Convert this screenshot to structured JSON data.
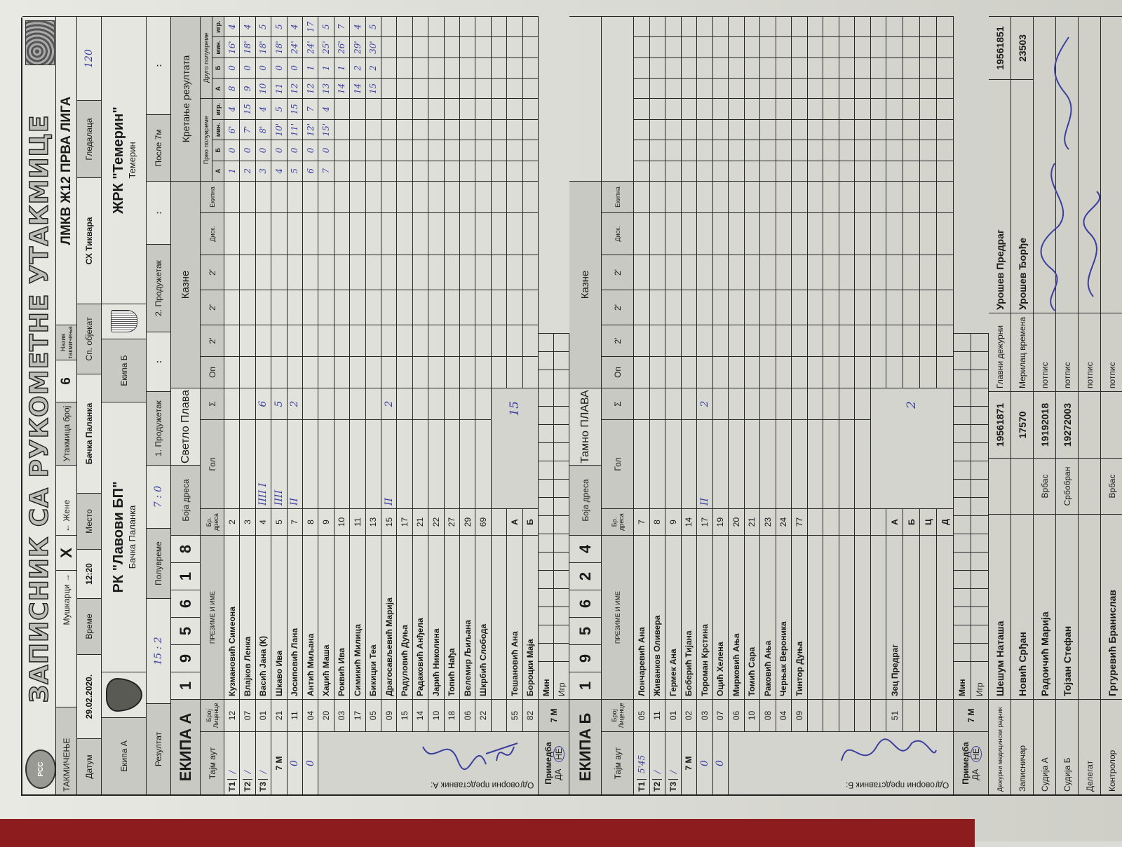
{
  "title": "ЗАПИСНИК СА РУКОМЕТНЕ УТАКМИЦЕ",
  "logo_text": "РСС",
  "header": {
    "competition_label": "ТАКМИЧЕЊЕ",
    "men_label": "Мушкарци →",
    "mark": "X",
    "women_label": "← Жене",
    "match_no_label": "Утакмица број",
    "match_no": "6",
    "competition_name_label": "Назив такмичења",
    "competition_name": "ЛМКВ Ж12 ПРВА ЛИГА",
    "date_label": "Датум",
    "date": "29.02.2020.",
    "time_label": "Време",
    "time": "12:20",
    "place_label": "Место",
    "place": "Бачка Паланка",
    "venue_label": "Сп. објекат",
    "venue": "СХ Тиквара",
    "spectators_label": "Гледалаца",
    "spectators": "120",
    "team_a_label": "Екипа А",
    "team_a_name": "РК \"Лавови БП\"",
    "team_a_city": "Бачка Паланка",
    "team_b_label": "Екипа Б",
    "team_b_name": "ЖРК \"Темерин\"",
    "team_b_city": "Темерин",
    "result_label": "Резултат",
    "result": "15 : 2",
    "halftime_label": "Полувреме",
    "halftime": "7 : 0",
    "ot1_label": "1. Продужетак",
    "ot1": ":",
    "ot2_label": "2. Продужетак",
    "ot2": ":",
    "after7m_label": "После 7м",
    "after7m": ":"
  },
  "columns": {
    "timeout": "Тајм аут",
    "license": "Број Лиценце",
    "name": "ПРЕЗИМЕ И ИМЕ",
    "jersey": "Бр. дреса",
    "goal": "Гол",
    "sum": "Σ",
    "warning": "Оп",
    "p1": "2'",
    "p2": "2'",
    "p3": "2'",
    "disq": "Диск.",
    "team": "Екипна",
    "first_half": "Прво полувреме",
    "second_half": "Друго полувреме",
    "prog_sub": [
      "А",
      "Б",
      "мин.",
      "игр.",
      "А",
      "Б",
      "мин.",
      "игр."
    ]
  },
  "team_a": {
    "label": "ЕКИПА А",
    "license_digits": [
      "1",
      "9",
      "5",
      "6",
      "1",
      "8"
    ],
    "jersey_color_label": "Боја дреса",
    "jersey_color": "Светло Плава",
    "penalties_label": "Казне",
    "progression_label": "Кретање резултата",
    "timeouts": [
      {
        "label": "T1",
        "value": "/"
      },
      {
        "label": "T2",
        "value": "/"
      },
      {
        "label": "T3",
        "value": "/"
      }
    ],
    "seven_m_label": "7 M",
    "seven_m": [
      "0",
      "0"
    ],
    "players": [
      {
        "license": "12",
        "name": "Кузмановић Симеона",
        "jersey": "2"
      },
      {
        "license": "07",
        "name": "Влајков Ленка",
        "jersey": "3"
      },
      {
        "license": "01",
        "name": "Васић Јана    (К)",
        "jersey": "4",
        "goals": "IIII I",
        "total": "6"
      },
      {
        "license": "21",
        "name": "Шкаво Ива",
        "jersey": "5",
        "goals": "IIII",
        "total": "5"
      },
      {
        "license": "11",
        "name": "Јосиповић Лана",
        "jersey": "7",
        "goals": "II",
        "total": "2"
      },
      {
        "license": "04",
        "name": "Антић Миљана",
        "jersey": "8"
      },
      {
        "license": "20",
        "name": "Хаџић Маша",
        "jersey": "9"
      },
      {
        "license": "03",
        "name": "Роквић Ива",
        "jersey": "10"
      },
      {
        "license": "17",
        "name": "Симикић Милица",
        "jersey": "11"
      },
      {
        "license": "05",
        "name": "Бикицки Теа",
        "jersey": "13"
      },
      {
        "license": "09",
        "name": "Драгосављевић Марија",
        "jersey": "15",
        "goals": "II",
        "total": "2"
      },
      {
        "license": "15",
        "name": "Радуловић Дуња",
        "jersey": "17"
      },
      {
        "license": "14",
        "name": "Радаковић Анђела",
        "jersey": "21"
      },
      {
        "license": "10",
        "name": "Јарић Николина",
        "jersey": "22"
      },
      {
        "license": "18",
        "name": "Топић Нађа",
        "jersey": "27"
      },
      {
        "license": "06",
        "name": "Велемир Љиљана",
        "jersey": "29"
      },
      {
        "license": "22",
        "name": "Шкрбић Слобода",
        "jersey": "69"
      }
    ],
    "staff": [
      {
        "license": "55",
        "name": "Тешановић Ана",
        "role": "А"
      },
      {
        "license": "82",
        "name": "Бороцки Маја",
        "role": "Б"
      }
    ],
    "total_goals": "15",
    "remarks_label": "Примедба",
    "remarks_yes": "ДА",
    "remarks_no": "НЕ",
    "min_label": "Мин",
    "igr_label": "Игр",
    "rep_label": "Одговорни представник А:",
    "progression": {
      "first_half": [
        [
          "1",
          "0",
          "6'",
          "4"
        ],
        [
          "2",
          "0",
          "7'",
          "15"
        ],
        [
          "3",
          "0",
          "8'",
          "4"
        ],
        [
          "4",
          "0",
          "10'",
          "5"
        ],
        [
          "5",
          "0",
          "11'",
          "15"
        ],
        [
          "6",
          "0",
          "12'",
          "7"
        ],
        [
          "7",
          "0",
          "15'",
          "4"
        ]
      ],
      "second_half": [
        [
          "8",
          "0",
          "16'",
          "4"
        ],
        [
          "9",
          "0",
          "18'",
          "4"
        ],
        [
          "10",
          "0",
          "18'",
          "5"
        ],
        [
          "11",
          "0",
          "18'",
          "5"
        ],
        [
          "12",
          "0",
          "24'",
          "4"
        ],
        [
          "12",
          "1",
          "24'",
          "17"
        ],
        [
          "13",
          "1",
          "25'",
          "5"
        ],
        [
          "14",
          "1",
          "26'",
          "7"
        ],
        [
          "14",
          "2",
          "29'",
          "4"
        ],
        [
          "15",
          "2",
          "30'",
          "5"
        ]
      ]
    }
  },
  "team_b": {
    "label": "ЕКИПА Б",
    "license_digits": [
      "1",
      "9",
      "5",
      "6",
      "2",
      "4"
    ],
    "jersey_color_label": "Боја дреса",
    "jersey_color": "Тамно ПЛАВА",
    "penalties_label": "Казне",
    "timeouts": [
      {
        "label": "T1",
        "value": "5'45"
      },
      {
        "label": "T2",
        "value": "/"
      },
      {
        "label": "T3",
        "value": "/"
      }
    ],
    "seven_m_label": "7 M",
    "seven_m": [
      "0",
      "0"
    ],
    "players": [
      {
        "license": "05",
        "name": "Лончаревић Ана",
        "jersey": "7"
      },
      {
        "license": "11",
        "name": "Живанков Оливера",
        "jersey": "8"
      },
      {
        "license": "01",
        "name": "Гермек Ана",
        "jersey": "9"
      },
      {
        "license": "02",
        "name": "Боберић Тијана",
        "jersey": "14"
      },
      {
        "license": "03",
        "name": "Тороман Крстина",
        "jersey": "17",
        "goals": "II",
        "total": "2"
      },
      {
        "license": "07",
        "name": "Оцић Хелена",
        "jersey": "19"
      },
      {
        "license": "06",
        "name": "Мирковић Ања",
        "jersey": "20"
      },
      {
        "license": "10",
        "name": "Томић Сара",
        "jersey": "21"
      },
      {
        "license": "08",
        "name": "Раковић Ања",
        "jersey": "23"
      },
      {
        "license": "04",
        "name": "Черњак Вероника",
        "jersey": "24"
      },
      {
        "license": "09",
        "name": "Тинтор Дуња",
        "jersey": "77"
      }
    ],
    "staff": [
      {
        "license": "51",
        "name": "Зец Предраг",
        "role": "А"
      },
      {
        "license": "",
        "name": "",
        "role": "Б"
      },
      {
        "license": "",
        "name": "",
        "role": "Ц"
      },
      {
        "license": "",
        "name": "",
        "role": "Д"
      }
    ],
    "total_goals": "2",
    "remarks_label": "Примедба",
    "remarks_yes": "ДА",
    "remarks_no": "НЕ",
    "min_label": "Мин",
    "igr_label": "Игр",
    "rep_label": "Одговорни представник Б:"
  },
  "officials": [
    {
      "label": "Дежурни медицински радник",
      "name": "Шешум Наташа",
      "city": "",
      "number": "19561871",
      "label2": "Главни дежурни",
      "name2": "Урошев Предраг",
      "number2": "19561851"
    },
    {
      "label": "Записничар",
      "name": "Новић Срђан",
      "city": "",
      "number": "17570",
      "label2": "Мерилац времена",
      "name2": "Урошев Ђорђе",
      "number2": "23503"
    },
    {
      "label": "Судија А",
      "name": "Радоичић Марија",
      "city": "Врбас",
      "number": "19192018",
      "label2": "потпис"
    },
    {
      "label": "Судија Б",
      "name": "Тојзан Стефан",
      "city": "Србобран",
      "number": "19272003",
      "label2": "потпис"
    },
    {
      "label": "Делегат",
      "name": "",
      "city": "",
      "number": "",
      "label2": "потпис"
    },
    {
      "label": "Контролор",
      "name": "Гргуревић Бранислав",
      "city": "Врбас",
      "number": "",
      "label2": "потпис"
    }
  ],
  "colors": {
    "ink": "#3b3f9e",
    "header_gray": "#c9c9c3",
    "felt": "#8d1c1f"
  }
}
